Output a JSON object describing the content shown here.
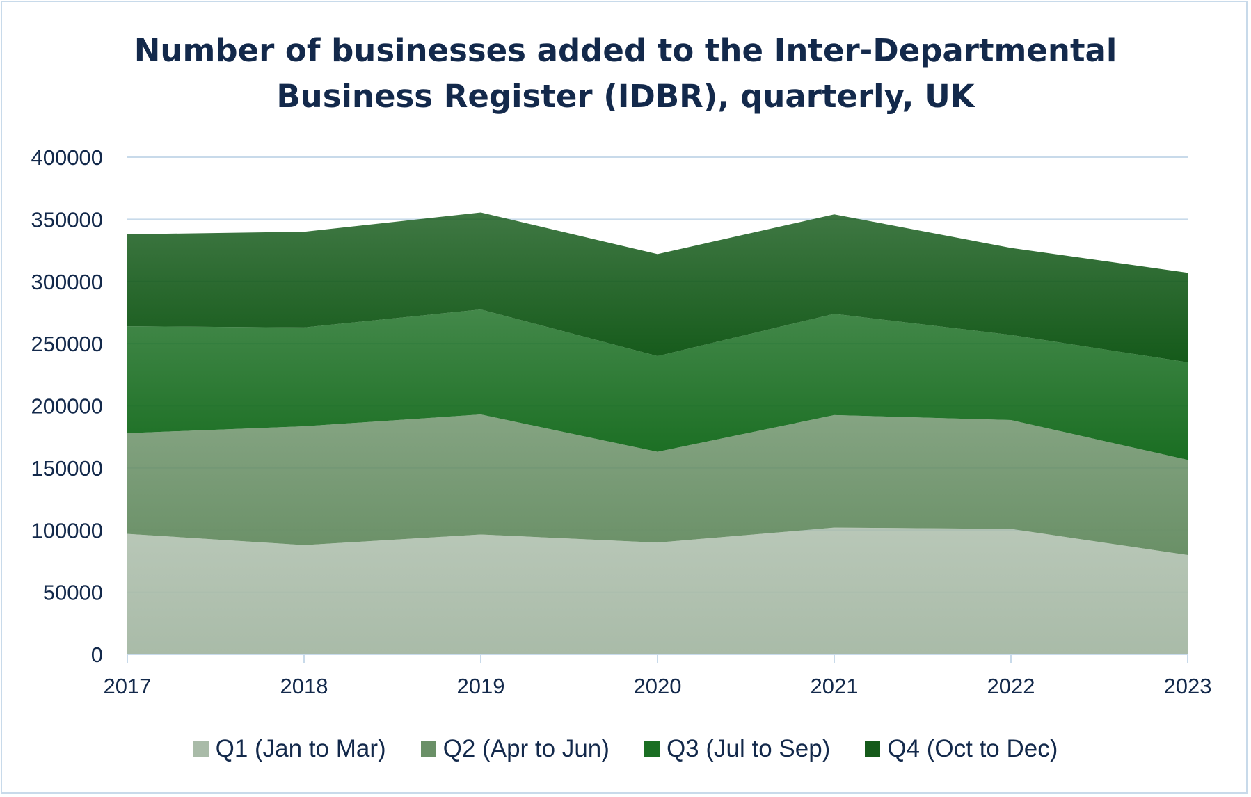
{
  "chart_data": {
    "type": "area",
    "stacked": true,
    "title_lines": [
      "Number of businesses added to the Inter-Departmental",
      "Business Register (IDBR), quarterly, UK"
    ],
    "xlabel": "",
    "ylabel": "",
    "categories": [
      "2017",
      "2018",
      "2019",
      "2020",
      "2021",
      "2022",
      "2023"
    ],
    "ylim": [
      0,
      400000
    ],
    "yticks": [
      "0",
      "50000",
      "100000",
      "150000",
      "200000",
      "250000",
      "300000",
      "350000",
      "400000"
    ],
    "grid": true,
    "legend_position": "bottom",
    "series": [
      {
        "name": "Q1 (Jan to Mar)",
        "color": "#a9bba8",
        "values": [
          97000,
          88000,
          96500,
          90000,
          102000,
          101000,
          80000
        ]
      },
      {
        "name": "Q2 (Apr to Jun)",
        "color": "#6a9067",
        "values": [
          81000,
          95500,
          96500,
          73000,
          90500,
          87500,
          76500
        ]
      },
      {
        "name": "Q3 (Jul to Sep)",
        "color": "#1a6e22",
        "values": [
          86000,
          79500,
          84500,
          77000,
          81500,
          68500,
          78500
        ]
      },
      {
        "name": "Q4 (Oct to Dec)",
        "color": "#155a1a",
        "values": [
          74000,
          77000,
          78000,
          82000,
          80000,
          70000,
          72000
        ]
      }
    ]
  }
}
